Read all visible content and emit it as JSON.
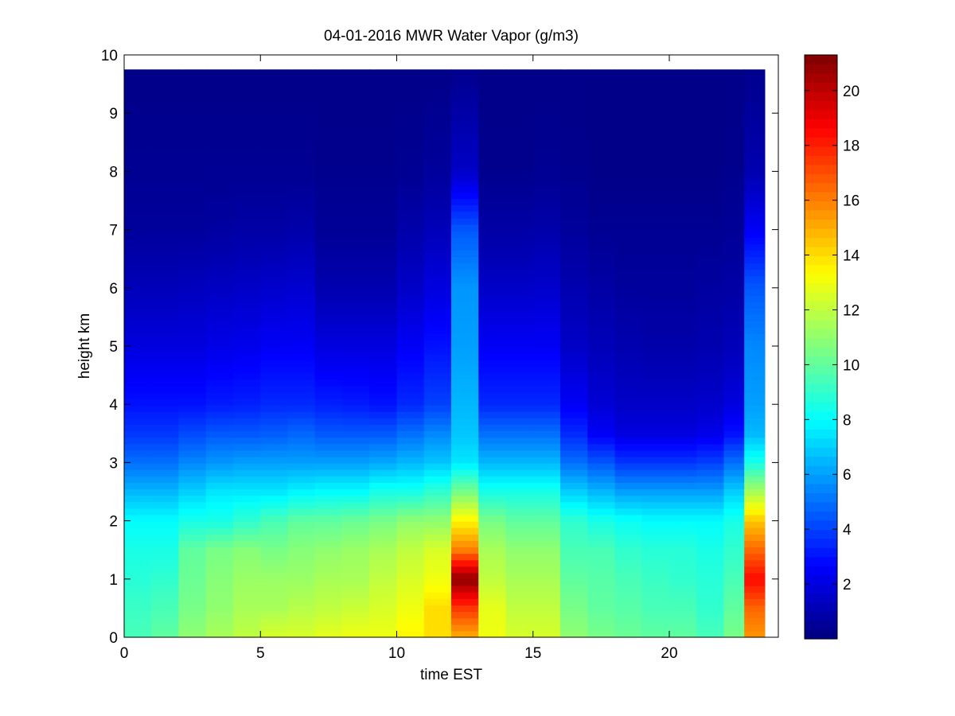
{
  "chart_data": {
    "type": "heatmap",
    "title": "04-01-2016 MWR Water Vapor (g/m3)",
    "xlabel": "time EST",
    "ylabel": "height km",
    "xlim": [
      0,
      24
    ],
    "ylim": [
      0,
      10
    ],
    "x_ticks": [
      0,
      5,
      10,
      15,
      20
    ],
    "y_ticks": [
      0,
      1,
      2,
      3,
      4,
      5,
      6,
      7,
      8,
      9,
      10
    ],
    "colormap": "jet",
    "colorbar": {
      "range": [
        0,
        21.3
      ],
      "ticks": [
        2,
        4,
        6,
        8,
        10,
        12,
        14,
        16,
        18,
        20
      ]
    },
    "data_extent": {
      "x_max": 23.5,
      "height_max_km": 9.75
    },
    "time_hours": [
      0.5,
      1.5,
      2.5,
      3.5,
      4.5,
      5.5,
      6.5,
      7.5,
      8.5,
      9.5,
      10.5,
      11.5,
      12.5,
      13.5,
      14.5,
      15.5,
      16.5,
      17.5,
      18.5,
      19.5,
      20.5,
      21.5,
      22.5,
      23.0
    ],
    "profile_heights_km": [
      0,
      0.5,
      1.0,
      1.5,
      2.0,
      2.5,
      3.0,
      3.5,
      4.0,
      5.0,
      6.0,
      7.0,
      8.0,
      9.75
    ],
    "profiles_g_m3": [
      [
        9.5,
        9.2,
        8.8,
        8.5,
        8.0,
        6.5,
        5.0,
        3.8,
        3.0,
        2.0,
        1.2,
        0.6,
        0.4,
        0.2
      ],
      [
        10.0,
        9.5,
        9.0,
        8.5,
        8.0,
        6.5,
        5.0,
        3.8,
        3.0,
        2.0,
        1.2,
        0.6,
        0.4,
        0.2
      ],
      [
        11.0,
        10.5,
        10.2,
        10.0,
        8.5,
        7.0,
        5.5,
        4.2,
        3.0,
        2.0,
        1.3,
        0.6,
        0.4,
        0.2
      ],
      [
        11.5,
        11.0,
        10.8,
        10.5,
        8.5,
        7.5,
        5.8,
        4.5,
        3.2,
        2.2,
        1.4,
        0.7,
        0.4,
        0.2
      ],
      [
        12.0,
        11.5,
        11.2,
        10.8,
        9.0,
        7.5,
        6.0,
        4.5,
        3.3,
        2.3,
        1.5,
        0.8,
        0.4,
        0.2
      ],
      [
        12.5,
        11.5,
        11.2,
        10.5,
        9.5,
        7.5,
        6.0,
        4.6,
        3.5,
        2.5,
        1.6,
        0.8,
        0.4,
        0.2
      ],
      [
        12.5,
        11.8,
        11.2,
        10.8,
        10.0,
        7.8,
        6.0,
        4.8,
        3.5,
        2.5,
        1.7,
        0.9,
        0.4,
        0.2
      ],
      [
        12.8,
        12.0,
        11.5,
        11.0,
        10.0,
        8.0,
        6.0,
        4.5,
        3.3,
        2.0,
        1.0,
        0.5,
        0.3,
        0.2
      ],
      [
        13.0,
        12.2,
        11.5,
        11.2,
        10.2,
        8.0,
        6.0,
        4.5,
        3.2,
        2.0,
        1.0,
        0.5,
        0.3,
        0.2
      ],
      [
        13.0,
        12.5,
        12.0,
        11.5,
        10.5,
        8.5,
        6.2,
        4.5,
        3.0,
        2.0,
        1.0,
        0.5,
        0.3,
        0.2
      ],
      [
        13.5,
        13.0,
        12.5,
        12.0,
        11.0,
        8.5,
        6.5,
        5.0,
        3.5,
        2.5,
        1.5,
        0.9,
        0.4,
        0.2
      ],
      [
        14.0,
        14.0,
        13.0,
        12.5,
        11.0,
        9.0,
        6.8,
        5.5,
        4.0,
        3.0,
        2.0,
        1.2,
        0.6,
        0.2
      ],
      [
        15.0,
        17.5,
        21.0,
        16.0,
        13.5,
        10.5,
        7.5,
        6.8,
        6.5,
        6.0,
        5.8,
        4.5,
        1.5,
        0.3
      ],
      [
        13.0,
        12.8,
        12.0,
        11.5,
        10.5,
        8.5,
        6.5,
        5.0,
        3.5,
        2.5,
        1.5,
        0.8,
        0.3,
        0.2
      ],
      [
        12.5,
        12.0,
        11.5,
        11.0,
        10.0,
        8.5,
        6.5,
        5.0,
        3.5,
        2.5,
        1.5,
        0.8,
        0.3,
        0.2
      ],
      [
        12.5,
        12.0,
        11.5,
        11.0,
        10.0,
        8.5,
        6.5,
        5.0,
        3.5,
        2.5,
        1.6,
        0.9,
        0.4,
        0.2
      ],
      [
        11.0,
        10.5,
        10.0,
        9.5,
        9.0,
        7.0,
        5.0,
        3.5,
        2.5,
        1.5,
        1.0,
        0.6,
        0.3,
        0.2
      ],
      [
        10.5,
        10.0,
        9.8,
        9.5,
        8.5,
        6.5,
        4.5,
        2.5,
        1.8,
        1.2,
        0.8,
        0.4,
        0.2,
        0.2
      ],
      [
        10.2,
        9.8,
        9.5,
        9.0,
        8.2,
        6.0,
        3.8,
        2.0,
        1.5,
        1.0,
        0.6,
        0.4,
        0.2,
        0.2
      ],
      [
        10.0,
        9.5,
        9.2,
        8.8,
        8.0,
        6.0,
        3.8,
        2.0,
        1.5,
        0.9,
        0.6,
        0.4,
        0.2,
        0.2
      ],
      [
        10.0,
        9.5,
        9.0,
        8.8,
        8.0,
        6.0,
        3.8,
        2.0,
        1.5,
        0.9,
        0.6,
        0.4,
        0.2,
        0.2
      ],
      [
        9.5,
        9.0,
        8.8,
        8.5,
        8.0,
        6.0,
        4.0,
        2.2,
        1.6,
        1.0,
        0.7,
        0.4,
        0.2,
        0.2
      ],
      [
        10.5,
        10.0,
        9.5,
        9.0,
        8.5,
        7.0,
        5.0,
        3.0,
        2.0,
        1.2,
        0.8,
        0.5,
        0.3,
        0.2
      ],
      [
        15.5,
        16.5,
        18.5,
        16.5,
        14.5,
        11.5,
        8.5,
        6.5,
        6.0,
        5.5,
        4.5,
        2.5,
        1.0,
        0.3
      ]
    ]
  }
}
